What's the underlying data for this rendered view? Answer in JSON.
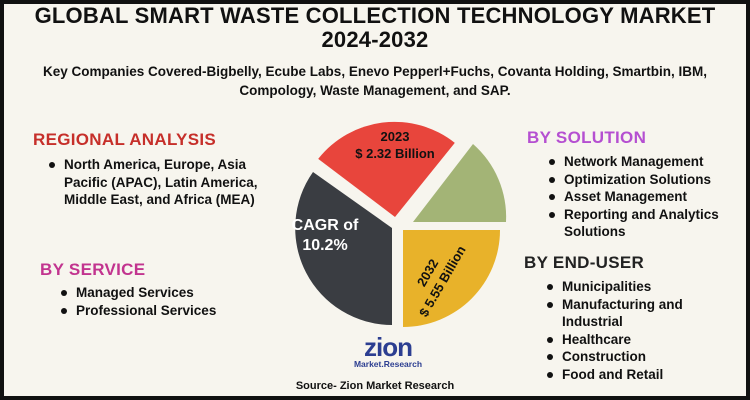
{
  "title": {
    "line1": "GLOBAL SMART WASTE COLLECTION TECHNOLOGY MARKET",
    "line2": "2024-2032"
  },
  "subtitle": "Key Companies Covered-Bigbelly, Ecube Labs, Enevo Pepperl+Fuchs, Covanta Holding, Smartbin, IBM, Compology, Waste Management, and SAP.",
  "regional": {
    "heading": "REGIONAL ANALYSIS",
    "items": [
      "North America, Europe, Asia Pacific (APAC), Latin America, Middle East, and Africa (MEA)"
    ]
  },
  "service": {
    "heading": "BY SERVICE",
    "items": [
      "Managed Services",
      "Professional Services"
    ]
  },
  "solution": {
    "heading": "BY SOLUTION",
    "items": [
      "Network Management",
      "Optimization Solutions",
      "Asset Management",
      "Reporting and Analytics Solutions"
    ]
  },
  "enduser": {
    "heading": "BY END-USER",
    "items": [
      "Municipalities",
      "Manufacturing and Industrial",
      "Healthcare",
      "Construction",
      "Food and Retail"
    ]
  },
  "pie": {
    "year2023": "2023",
    "value2023": "$ 2.32 Billion",
    "cagr_line1": "CAGR of",
    "cagr_line2": "10.2%",
    "year2032": "2032",
    "value2032": "$ 5.55 Billion"
  },
  "logo": {
    "name": "zion",
    "sub": "Market.Research"
  },
  "source": "Source- Zion Market Research",
  "colors": {
    "red": "#e8453c",
    "green": "#a3b476",
    "yellow": "#e8b22a",
    "dark": "#3a3d42",
    "regional_heading": "#c62f2a",
    "service_heading": "#c2348f",
    "solution_heading": "#b54fd1",
    "enduser_heading": "#222222"
  }
}
